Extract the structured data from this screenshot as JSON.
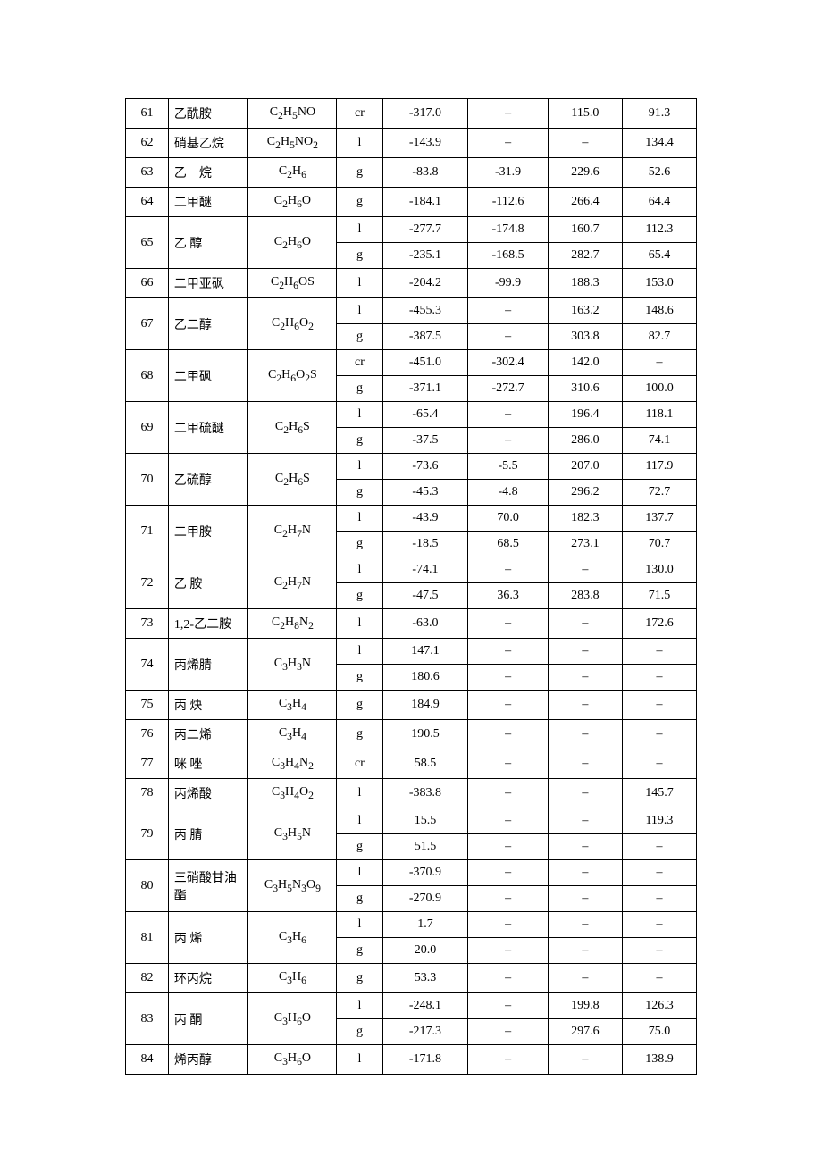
{
  "table": {
    "border_color": "#000000",
    "background_color": "#ffffff",
    "font_size": 14,
    "rows": [
      {
        "id": "61",
        "name": "乙酰胺",
        "formula": "C<sub>2</sub>H<sub>5</sub>NO",
        "cells": [
          [
            "cr",
            "-317.0",
            "–",
            "115.0",
            "91.3"
          ]
        ]
      },
      {
        "id": "62",
        "name": "硝基乙烷",
        "formula": "C<sub>2</sub>H<sub>5</sub>NO<sub>2</sub>",
        "cells": [
          [
            "l",
            "-143.9",
            "–",
            "–",
            "134.4"
          ]
        ]
      },
      {
        "id": "63",
        "name": "乙　烷",
        "formula": "C<sub>2</sub>H<sub>6</sub>",
        "cells": [
          [
            "g",
            "-83.8",
            "-31.9",
            "229.6",
            "52.6"
          ]
        ]
      },
      {
        "id": "64",
        "name": "二甲醚",
        "formula": "C<sub>2</sub>H<sub>6</sub>O",
        "cells": [
          [
            "g",
            "-184.1",
            "-112.6",
            "266.4",
            "64.4"
          ]
        ]
      },
      {
        "id": "65",
        "name": "乙 醇",
        "formula": "C<sub>2</sub>H<sub>6</sub>O",
        "cells": [
          [
            "l",
            "-277.7",
            "-174.8",
            "160.7",
            "112.3"
          ],
          [
            "g",
            "-235.1",
            "-168.5",
            "282.7",
            "65.4"
          ]
        ]
      },
      {
        "id": "66",
        "name": "二甲亚砜",
        "formula": "C<sub>2</sub>H<sub>6</sub>OS",
        "cells": [
          [
            "l",
            "-204.2",
            "-99.9",
            "188.3",
            "153.0"
          ]
        ]
      },
      {
        "id": "67",
        "name": "乙二醇",
        "formula": "C<sub>2</sub>H<sub>6</sub>O<sub>2</sub>",
        "cells": [
          [
            "l",
            "-455.3",
            "–",
            "163.2",
            "148.6"
          ],
          [
            "g",
            "-387.5",
            "–",
            "303.8",
            "82.7"
          ]
        ]
      },
      {
        "id": "68",
        "name": "二甲砜",
        "formula": "C<sub>2</sub>H<sub>6</sub>O<sub>2</sub>S",
        "cells": [
          [
            "cr",
            "-451.0",
            "-302.4",
            "142.0",
            "–"
          ],
          [
            "g",
            "-371.1",
            "-272.7",
            "310.6",
            "100.0"
          ]
        ]
      },
      {
        "id": "69",
        "name": "二甲硫醚",
        "formula": "C<sub>2</sub>H<sub>6</sub>S",
        "cells": [
          [
            "l",
            "-65.4",
            "–",
            "196.4",
            "118.1"
          ],
          [
            "g",
            "-37.5",
            "–",
            "286.0",
            "74.1"
          ]
        ]
      },
      {
        "id": "70",
        "name": "乙硫醇",
        "formula": "C<sub>2</sub>H<sub>6</sub>S",
        "cells": [
          [
            "l",
            "-73.6",
            "-5.5",
            "207.0",
            "117.9"
          ],
          [
            "g",
            "-45.3",
            "-4.8",
            "296.2",
            "72.7"
          ]
        ]
      },
      {
        "id": "71",
        "name": "二甲胺",
        "formula": "C<sub>2</sub>H<sub>7</sub>N",
        "cells": [
          [
            "l",
            "-43.9",
            "70.0",
            "182.3",
            "137.7"
          ],
          [
            "g",
            "-18.5",
            "68.5",
            "273.1",
            "70.7"
          ]
        ]
      },
      {
        "id": "72",
        "name": "乙 胺",
        "formula": "C<sub>2</sub>H<sub>7</sub>N",
        "cells": [
          [
            "l",
            "-74.1",
            "–",
            "–",
            "130.0"
          ],
          [
            "g",
            "-47.5",
            "36.3",
            "283.8",
            "71.5"
          ]
        ]
      },
      {
        "id": "73",
        "name": "1,2-乙二胺",
        "formula": "C<sub>2</sub>H<sub>8</sub>N<sub>2</sub>",
        "cells": [
          [
            "l",
            "-63.0",
            "–",
            "–",
            "172.6"
          ]
        ]
      },
      {
        "id": "74",
        "name": "丙烯腈",
        "formula": "C<sub>3</sub>H<sub>3</sub>N",
        "cells": [
          [
            "l",
            "147.1",
            "–",
            "–",
            "–"
          ],
          [
            "g",
            "180.6",
            "–",
            "–",
            "–"
          ]
        ]
      },
      {
        "id": "75",
        "name": "丙 炔",
        "formula": "C<sub>3</sub>H<sub>4</sub>",
        "cells": [
          [
            "g",
            "184.9",
            "–",
            "–",
            "–"
          ]
        ]
      },
      {
        "id": "76",
        "name": "丙二烯",
        "formula": "C<sub>3</sub>H<sub>4</sub>",
        "cells": [
          [
            "g",
            "190.5",
            "–",
            "–",
            "–"
          ]
        ]
      },
      {
        "id": "77",
        "name": "咪 唑",
        "formula": "C<sub>3</sub>H<sub>4</sub>N<sub>2</sub>",
        "cells": [
          [
            "cr",
            "58.5",
            "–",
            "–",
            "–"
          ]
        ]
      },
      {
        "id": "78",
        "name": "丙烯酸",
        "formula": "C<sub>3</sub>H<sub>4</sub>O<sub>2</sub>",
        "cells": [
          [
            "l",
            "-383.8",
            "–",
            "–",
            "145.7"
          ]
        ]
      },
      {
        "id": "79",
        "name": "丙 腈",
        "formula": "C<sub>3</sub>H<sub>5</sub>N",
        "cells": [
          [
            "l",
            "15.5",
            "–",
            "–",
            "119.3"
          ],
          [
            "g",
            "51.5",
            "–",
            "–",
            "–"
          ]
        ]
      },
      {
        "id": "80",
        "name": "三硝酸甘油酯",
        "formula": "C<sub>3</sub>H<sub>5</sub>N<sub>3</sub>O<sub>9</sub>",
        "cells": [
          [
            "l",
            "-370.9",
            "–",
            "–",
            "–"
          ],
          [
            "g",
            "-270.9",
            "–",
            "–",
            "–"
          ]
        ]
      },
      {
        "id": "81",
        "name": "丙 烯",
        "formula": "C<sub>3</sub>H<sub>6</sub>",
        "cells": [
          [
            "l",
            "1.7",
            "–",
            "–",
            "–"
          ],
          [
            "g",
            "20.0",
            "–",
            "–",
            "–"
          ]
        ]
      },
      {
        "id": "82",
        "name": "环丙烷",
        "formula": "C<sub>3</sub>H<sub>6</sub>",
        "cells": [
          [
            "g",
            "53.3",
            "–",
            "–",
            "–"
          ]
        ]
      },
      {
        "id": "83",
        "name": "丙 酮",
        "formula": "C<sub>3</sub>H<sub>6</sub>O",
        "cells": [
          [
            "l",
            "-248.1",
            "–",
            "199.8",
            "126.3"
          ],
          [
            "g",
            "-217.3",
            "–",
            "297.6",
            "75.0"
          ]
        ]
      },
      {
        "id": "84",
        "name": "烯丙醇",
        "formula": "C<sub>3</sub>H<sub>6</sub>O",
        "cells": [
          [
            "l",
            "-171.8",
            "–",
            "–",
            "138.9"
          ]
        ]
      }
    ]
  }
}
